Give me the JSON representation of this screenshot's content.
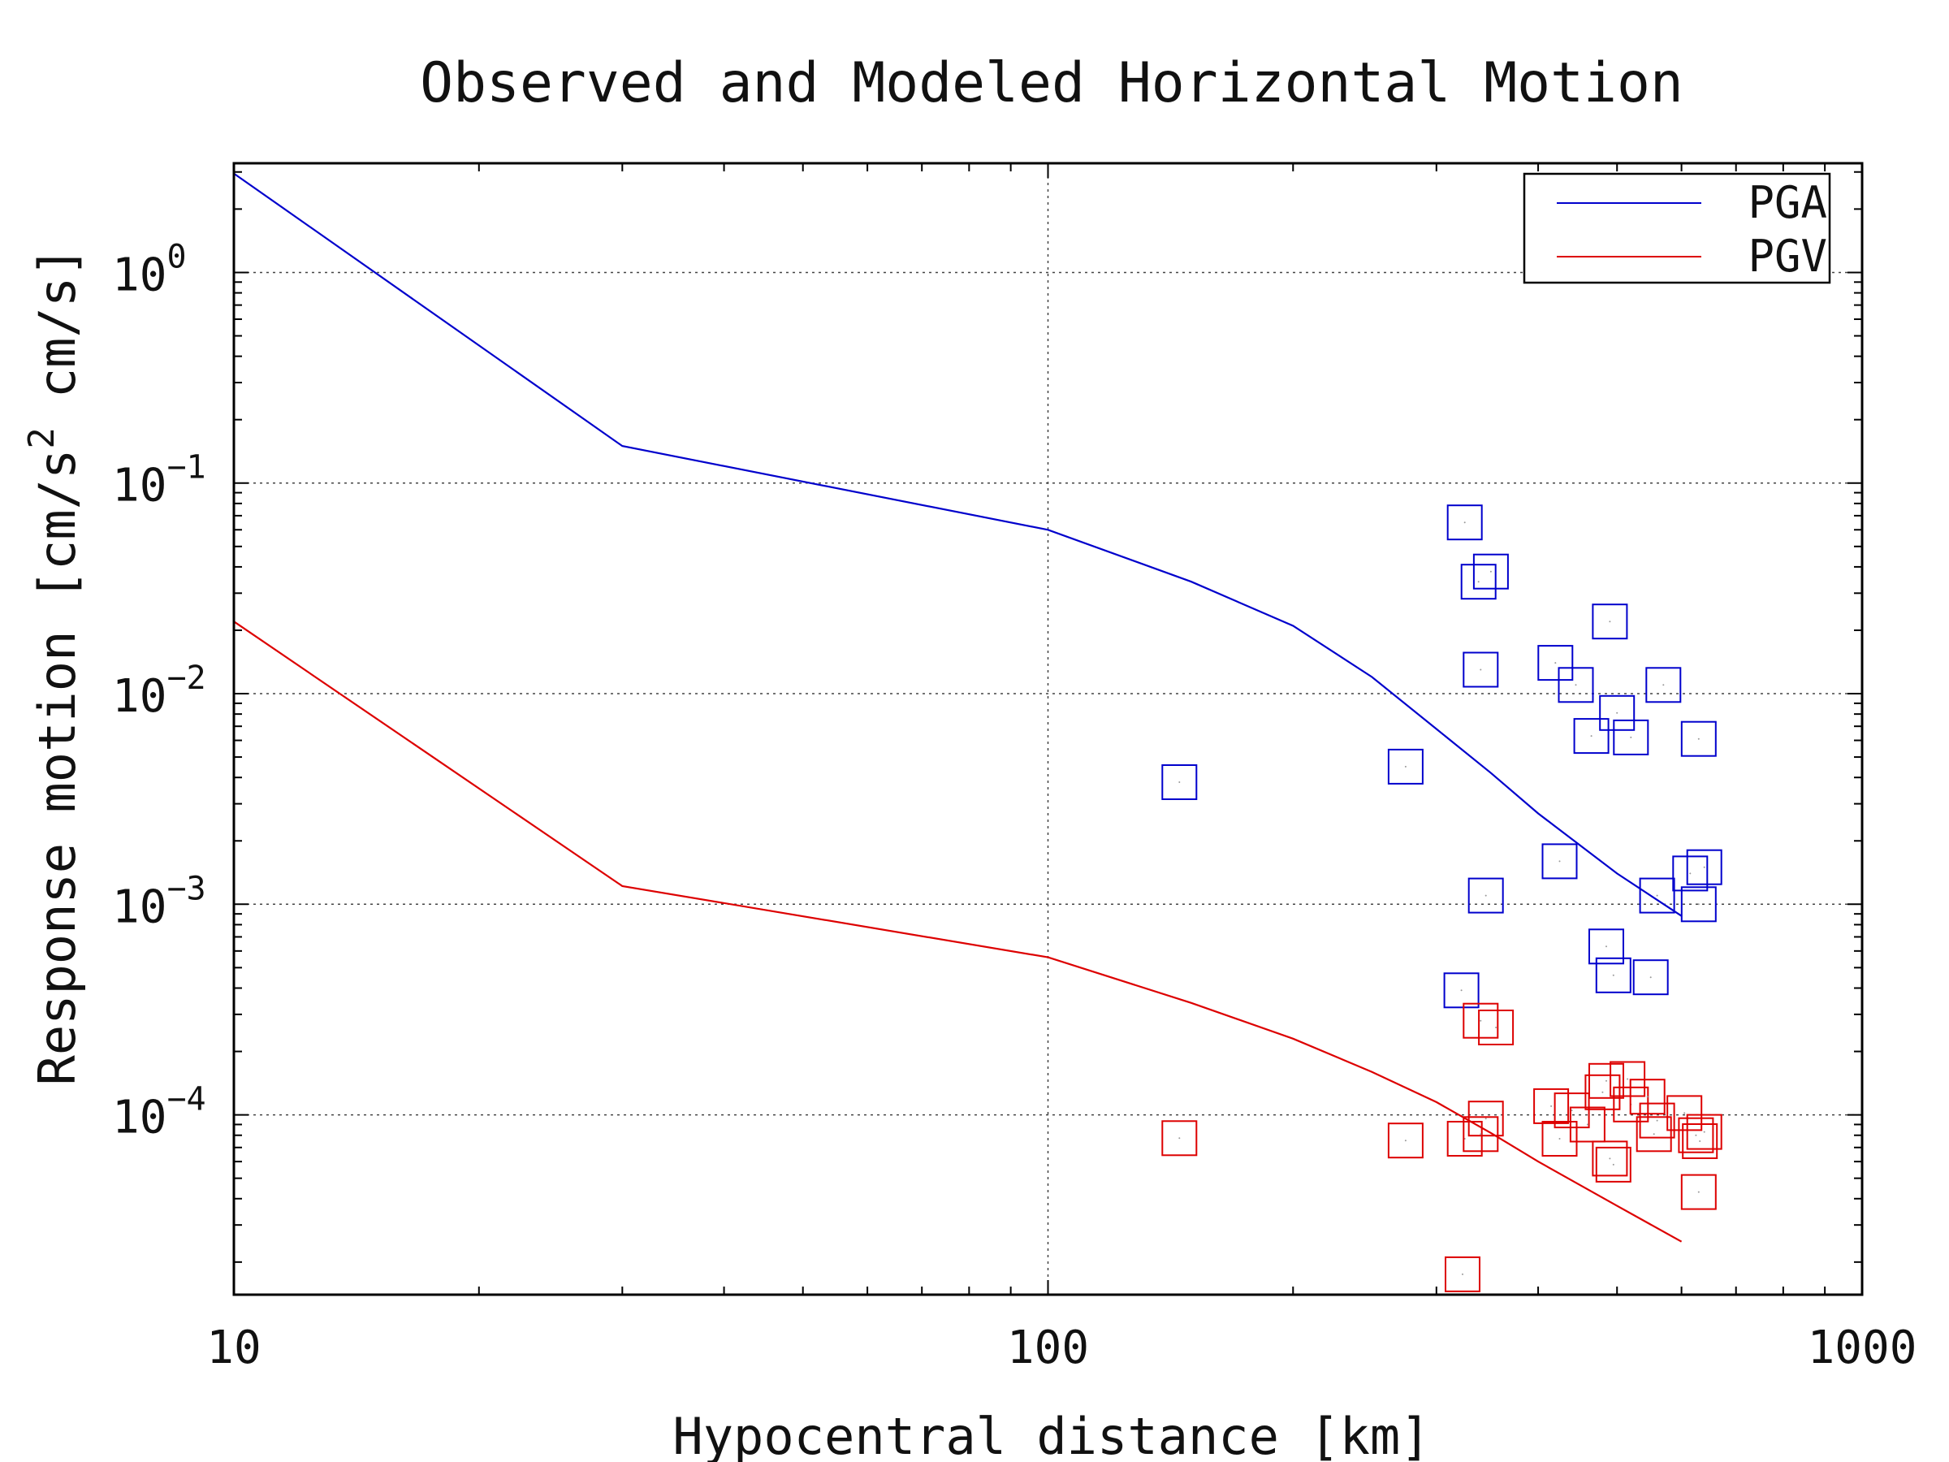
{
  "chart_data": {
    "type": "scatter",
    "title": "Observed and Modeled Horizontal Motion",
    "xlabel": "Hypocentral distance [km]",
    "ylabel": "Response motion [cm/s",
    "ylabel_exp": "2",
    "ylabel_tail": "cm/s]",
    "xscale": "log",
    "yscale": "log",
    "xlim": [
      10,
      1000
    ],
    "ylim": [
      1.4e-05,
      3.3
    ],
    "grid": true,
    "legend_position": "top-right",
    "xticks": [
      {
        "value": 10,
        "label": "10"
      },
      {
        "value": 100,
        "label": "100"
      },
      {
        "value": 1000,
        "label": "1000"
      }
    ],
    "yticks": [
      {
        "value": 1,
        "base": "10",
        "exp": "0"
      },
      {
        "value": 0.1,
        "base": "10",
        "exp": "−1"
      },
      {
        "value": 0.01,
        "base": "10",
        "exp": "−2"
      },
      {
        "value": 0.001,
        "base": "10",
        "exp": "−3"
      },
      {
        "value": 0.0001,
        "base": "10",
        "exp": "−4"
      }
    ],
    "series": [
      {
        "name": "PGA",
        "color": "#0000cc",
        "line": [
          [
            10,
            2.95
          ],
          [
            30,
            0.15
          ],
          [
            100,
            0.06
          ],
          [
            150,
            0.034
          ],
          [
            200,
            0.021
          ],
          [
            250,
            0.012
          ],
          [
            300,
            0.0068
          ],
          [
            350,
            0.0042
          ],
          [
            400,
            0.0027
          ],
          [
            500,
            0.0014
          ],
          [
            600,
            0.00088
          ]
        ],
        "points": [
          [
            145,
            0.0038
          ],
          [
            275,
            0.0045
          ],
          [
            325,
            0.065
          ],
          [
            338,
            0.034
          ],
          [
            350,
            0.038
          ],
          [
            340,
            0.013
          ],
          [
            420,
            0.014
          ],
          [
            445,
            0.011
          ],
          [
            490,
            0.022
          ],
          [
            465,
            0.0063
          ],
          [
            500,
            0.0081
          ],
          [
            520,
            0.0062
          ],
          [
            570,
            0.011
          ],
          [
            630,
            0.0061
          ],
          [
            345,
            0.0011
          ],
          [
            425,
            0.0016
          ],
          [
            485,
            0.00063
          ],
          [
            495,
            0.00046
          ],
          [
            560,
            0.0011
          ],
          [
            550,
            0.00045
          ],
          [
            615,
            0.0014
          ],
          [
            640,
            0.0015
          ],
          [
            630,
            0.001
          ],
          [
            322,
            0.00039
          ]
        ]
      },
      {
        "name": "PGV",
        "color": "#dd0000",
        "line": [
          [
            10,
            0.022
          ],
          [
            30,
            0.00122
          ],
          [
            100,
            0.00056
          ],
          [
            150,
            0.00034
          ],
          [
            200,
            0.00023
          ],
          [
            250,
            0.00016
          ],
          [
            300,
            0.000115
          ],
          [
            350,
            8.2e-05
          ],
          [
            400,
            6e-05
          ],
          [
            500,
            3.7e-05
          ],
          [
            600,
            2.5e-05
          ]
        ],
        "points": [
          [
            145,
            7.75e-05
          ],
          [
            275,
            7.55e-05
          ],
          [
            323,
            1.75e-05
          ],
          [
            325,
            7.7e-05
          ],
          [
            340,
            0.00028
          ],
          [
            355,
            0.00026
          ],
          [
            345,
            9.6e-05
          ],
          [
            340,
            8.1e-05
          ],
          [
            415,
            0.00011
          ],
          [
            425,
            7.7e-05
          ],
          [
            440,
            0.000105
          ],
          [
            460,
            9e-05
          ],
          [
            480,
            0.000128
          ],
          [
            485,
            0.000145
          ],
          [
            490,
            6.2e-05
          ],
          [
            495,
            5.8e-05
          ],
          [
            515,
            0.000148
          ],
          [
            520,
            0.000112
          ],
          [
            545,
            0.000122
          ],
          [
            560,
            9.4e-05
          ],
          [
            555,
            8.1e-05
          ],
          [
            605,
            0.000102
          ],
          [
            625,
            8e-05
          ],
          [
            632,
            7.5e-05
          ],
          [
            640,
            8.3e-05
          ],
          [
            630,
            4.3e-05
          ]
        ]
      }
    ]
  }
}
